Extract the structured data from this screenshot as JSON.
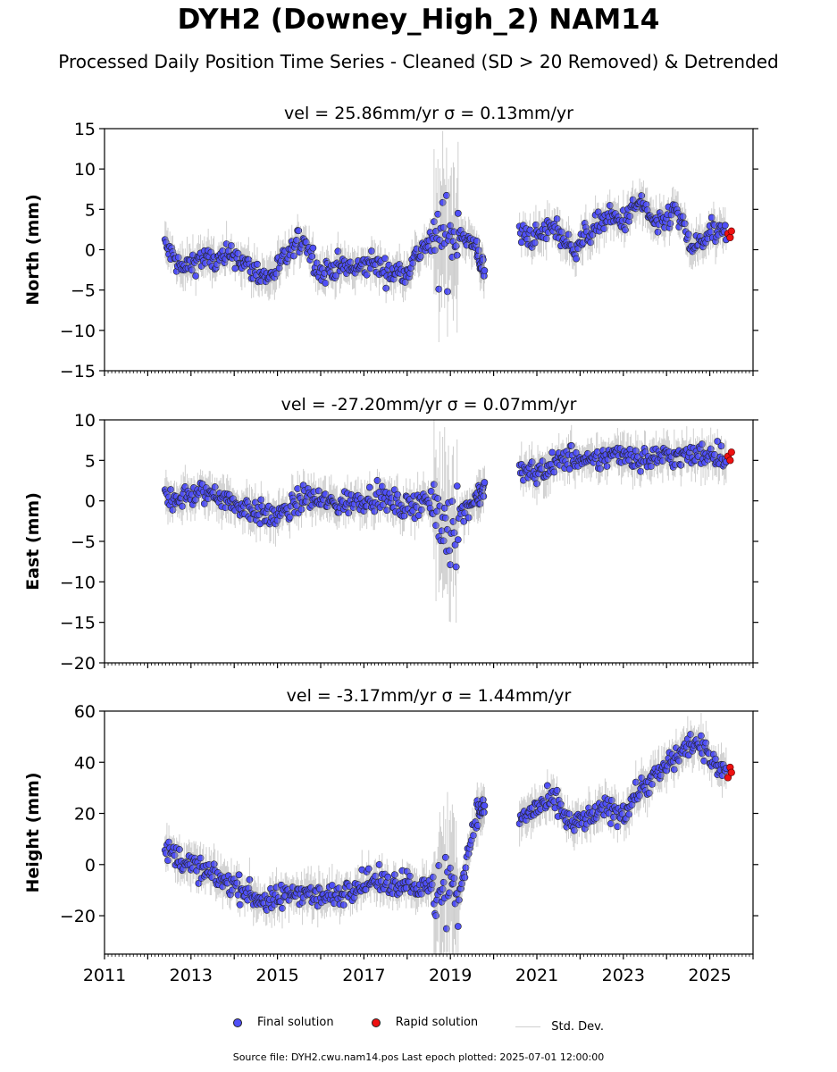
{
  "title": "DYH2 (Downey_High_2) NAM14",
  "subtitle": "Processed Daily Position Time Series - Cleaned (SD > 20 Removed) & Detrended",
  "legend": {
    "final": "Final solution",
    "rapid": "Rapid solution",
    "std": "Std. Dev."
  },
  "footer": "Source file: DYH2.cwu.nam14.pos  Last epoch plotted: 2025-07-01 12:00:00",
  "colors": {
    "final": "#4f4ff7",
    "rapid": "#ee1111",
    "std": "#a8a8a8",
    "marker_edge": "#222222"
  },
  "chart_data": [
    {
      "type": "scatter",
      "title": "vel = 25.86mm/yr   σ = 0.13mm/yr",
      "ylabel": "North (mm)",
      "ylim": [
        -15,
        15
      ],
      "yticks": [
        -15,
        -10,
        -5,
        0,
        5,
        10,
        15
      ],
      "xlim": [
        2011,
        2026
      ],
      "xticks": [
        2011,
        2013,
        2015,
        2017,
        2019,
        2021,
        2023,
        2025
      ],
      "show_xtick_labels": false,
      "grid": false,
      "series": [
        {
          "name": "Final solution",
          "x": [
            2012.4,
            2012.8,
            2013.2,
            2013.6,
            2014.0,
            2014.4,
            2014.8,
            2015.2,
            2015.6,
            2016.0,
            2016.4,
            2016.8,
            2017.2,
            2017.6,
            2018.0,
            2018.4,
            2018.8,
            2019.2,
            2019.6,
            2019.8,
            2020.6,
            2021.0,
            2021.4,
            2021.8,
            2022.2,
            2022.6,
            2023.0,
            2023.4,
            2023.8,
            2024.2,
            2024.6,
            2025.0,
            2025.4
          ],
          "values": [
            0.5,
            -2.5,
            -1.0,
            -1.5,
            -0.5,
            -2.5,
            -3.5,
            -1.0,
            1.5,
            -3.0,
            -2.0,
            -2.5,
            -1.5,
            -3.0,
            -2.5,
            0.5,
            1.0,
            2.5,
            0.0,
            -3.0,
            2.0,
            1.5,
            3.0,
            0.0,
            2.0,
            4.0,
            3.5,
            6.0,
            2.5,
            5.0,
            0.0,
            2.0,
            2.0
          ]
        },
        {
          "name": "Rapid solution",
          "x": [
            2025.42,
            2025.47,
            2025.5
          ],
          "values": [
            2.0,
            1.5,
            2.3
          ]
        }
      ]
    },
    {
      "type": "scatter",
      "title": "vel = -27.20mm/yr   σ = 0.07mm/yr",
      "ylabel": "East (mm)",
      "ylim": [
        -20,
        10
      ],
      "yticks": [
        -20,
        -15,
        -10,
        -5,
        0,
        5,
        10
      ],
      "xlim": [
        2011,
        2026
      ],
      "xticks": [
        2011,
        2013,
        2015,
        2017,
        2019,
        2021,
        2023,
        2025
      ],
      "show_xtick_labels": false,
      "grid": false,
      "series": [
        {
          "name": "Final solution",
          "x": [
            2012.4,
            2012.8,
            2013.2,
            2013.6,
            2014.0,
            2014.4,
            2014.8,
            2015.2,
            2015.6,
            2016.0,
            2016.4,
            2016.8,
            2017.2,
            2017.6,
            2018.0,
            2018.4,
            2018.8,
            2019.2,
            2019.6,
            2019.8,
            2020.6,
            2021.0,
            2021.4,
            2021.8,
            2022.2,
            2022.6,
            2023.0,
            2023.4,
            2023.8,
            2024.2,
            2024.6,
            2025.0,
            2025.4
          ],
          "values": [
            0.3,
            0.5,
            0.8,
            1.0,
            -0.5,
            -1.0,
            -2.0,
            -1.5,
            0.5,
            0.0,
            -0.5,
            0.0,
            0.5,
            0.0,
            -1.0,
            0.5,
            -3.0,
            -2.0,
            0.5,
            1.5,
            3.5,
            3.5,
            4.5,
            5.5,
            4.5,
            5.5,
            6.0,
            5.0,
            5.5,
            5.5,
            5.5,
            6.0,
            5.5
          ]
        },
        {
          "name": "Rapid solution",
          "x": [
            2025.42,
            2025.47,
            2025.5
          ],
          "values": [
            5.5,
            5.0,
            6.0
          ]
        }
      ]
    },
    {
      "type": "scatter",
      "title": "vel = -3.17mm/yr   σ = 1.44mm/yr",
      "ylabel": "Height (mm)",
      "ylim": [
        -35,
        60
      ],
      "yticks": [
        -20,
        0,
        20,
        40,
        60
      ],
      "xlim": [
        2011,
        2026
      ],
      "xticks": [
        2011,
        2013,
        2015,
        2017,
        2019,
        2021,
        2023,
        2025
      ],
      "show_xtick_labels": true,
      "grid": false,
      "series": [
        {
          "name": "Final solution",
          "x": [
            2012.4,
            2012.8,
            2013.2,
            2013.6,
            2014.0,
            2014.4,
            2014.8,
            2015.2,
            2015.6,
            2016.0,
            2016.4,
            2016.8,
            2017.2,
            2017.6,
            2018.0,
            2018.4,
            2018.8,
            2019.2,
            2019.6,
            2019.8,
            2020.6,
            2021.0,
            2021.4,
            2021.8,
            2022.2,
            2022.6,
            2023.0,
            2023.4,
            2023.8,
            2024.2,
            2024.6,
            2025.0,
            2025.4
          ],
          "values": [
            5.0,
            2.0,
            -2.0,
            -5.0,
            -8.0,
            -12.0,
            -15.0,
            -12.0,
            -10.0,
            -13.0,
            -12.0,
            -8.0,
            -6.0,
            -8.0,
            -6.0,
            -10.0,
            -8.0,
            -12.0,
            20.0,
            22.0,
            18.0,
            22.0,
            25.0,
            15.0,
            18.0,
            22.0,
            20.0,
            30.0,
            35.0,
            42.0,
            48.0,
            42.0,
            36.0
          ]
        },
        {
          "name": "Rapid solution",
          "x": [
            2025.42,
            2025.47,
            2025.5
          ],
          "values": [
            34.0,
            38.0,
            36.0
          ]
        }
      ]
    }
  ]
}
